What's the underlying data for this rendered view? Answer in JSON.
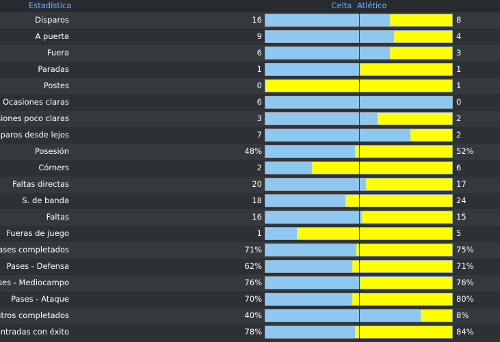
{
  "header": {
    "stat_label": "Estadística",
    "home_team": "Celta",
    "away_team": "Atlético"
  },
  "colors": {
    "home_bar": "#8ec8f0",
    "away_bar": "#ffff00",
    "header_text": "#6cb4ff"
  },
  "stats": [
    {
      "label": "Disparos",
      "home": "16",
      "away": "8",
      "home_share": 0.667
    },
    {
      "label": "A puerta",
      "home": "9",
      "away": "4",
      "home_share": 0.69
    },
    {
      "label": "Fuera",
      "home": "6",
      "away": "3",
      "home_share": 0.667
    },
    {
      "label": "Paradas",
      "home": "1",
      "away": "1",
      "home_share": 0.5
    },
    {
      "label": "Postes",
      "home": "0",
      "away": "1",
      "home_share": 0.0
    },
    {
      "label": "Ocasiones claras",
      "home": "6",
      "away": "0",
      "home_share": 1.0
    },
    {
      "label": "Ocasiones poco claras",
      "home": "3",
      "away": "2",
      "home_share": 0.6
    },
    {
      "label": "Disparos desde lejos",
      "home": "7",
      "away": "2",
      "home_share": 0.778
    },
    {
      "label": "Posesión",
      "home": "48%",
      "away": "52%",
      "home_share": 0.48
    },
    {
      "label": "Córners",
      "home": "2",
      "away": "6",
      "home_share": 0.25
    },
    {
      "label": "Faltas directas",
      "home": "20",
      "away": "17",
      "home_share": 0.54
    },
    {
      "label": "S. de banda",
      "home": "18",
      "away": "24",
      "home_share": 0.43
    },
    {
      "label": "Faltas",
      "home": "16",
      "away": "15",
      "home_share": 0.516
    },
    {
      "label": "Fueras de juego",
      "home": "1",
      "away": "5",
      "home_share": 0.167
    },
    {
      "label": "Pases completados",
      "home": "71%",
      "away": "75%",
      "home_share": 0.486
    },
    {
      "label": "Pases - Defensa",
      "home": "62%",
      "away": "71%",
      "home_share": 0.466
    },
    {
      "label": "Pases - Mediocampo",
      "home": "76%",
      "away": "76%",
      "home_share": 0.5
    },
    {
      "label": "Pases - Ataque",
      "home": "70%",
      "away": "80%",
      "home_share": 0.467
    },
    {
      "label": "Centros completados",
      "home": "40%",
      "away": "8%",
      "home_share": 0.833
    },
    {
      "label": "Entradas con éxito",
      "home": "78%",
      "away": "84%",
      "home_share": 0.481
    }
  ]
}
